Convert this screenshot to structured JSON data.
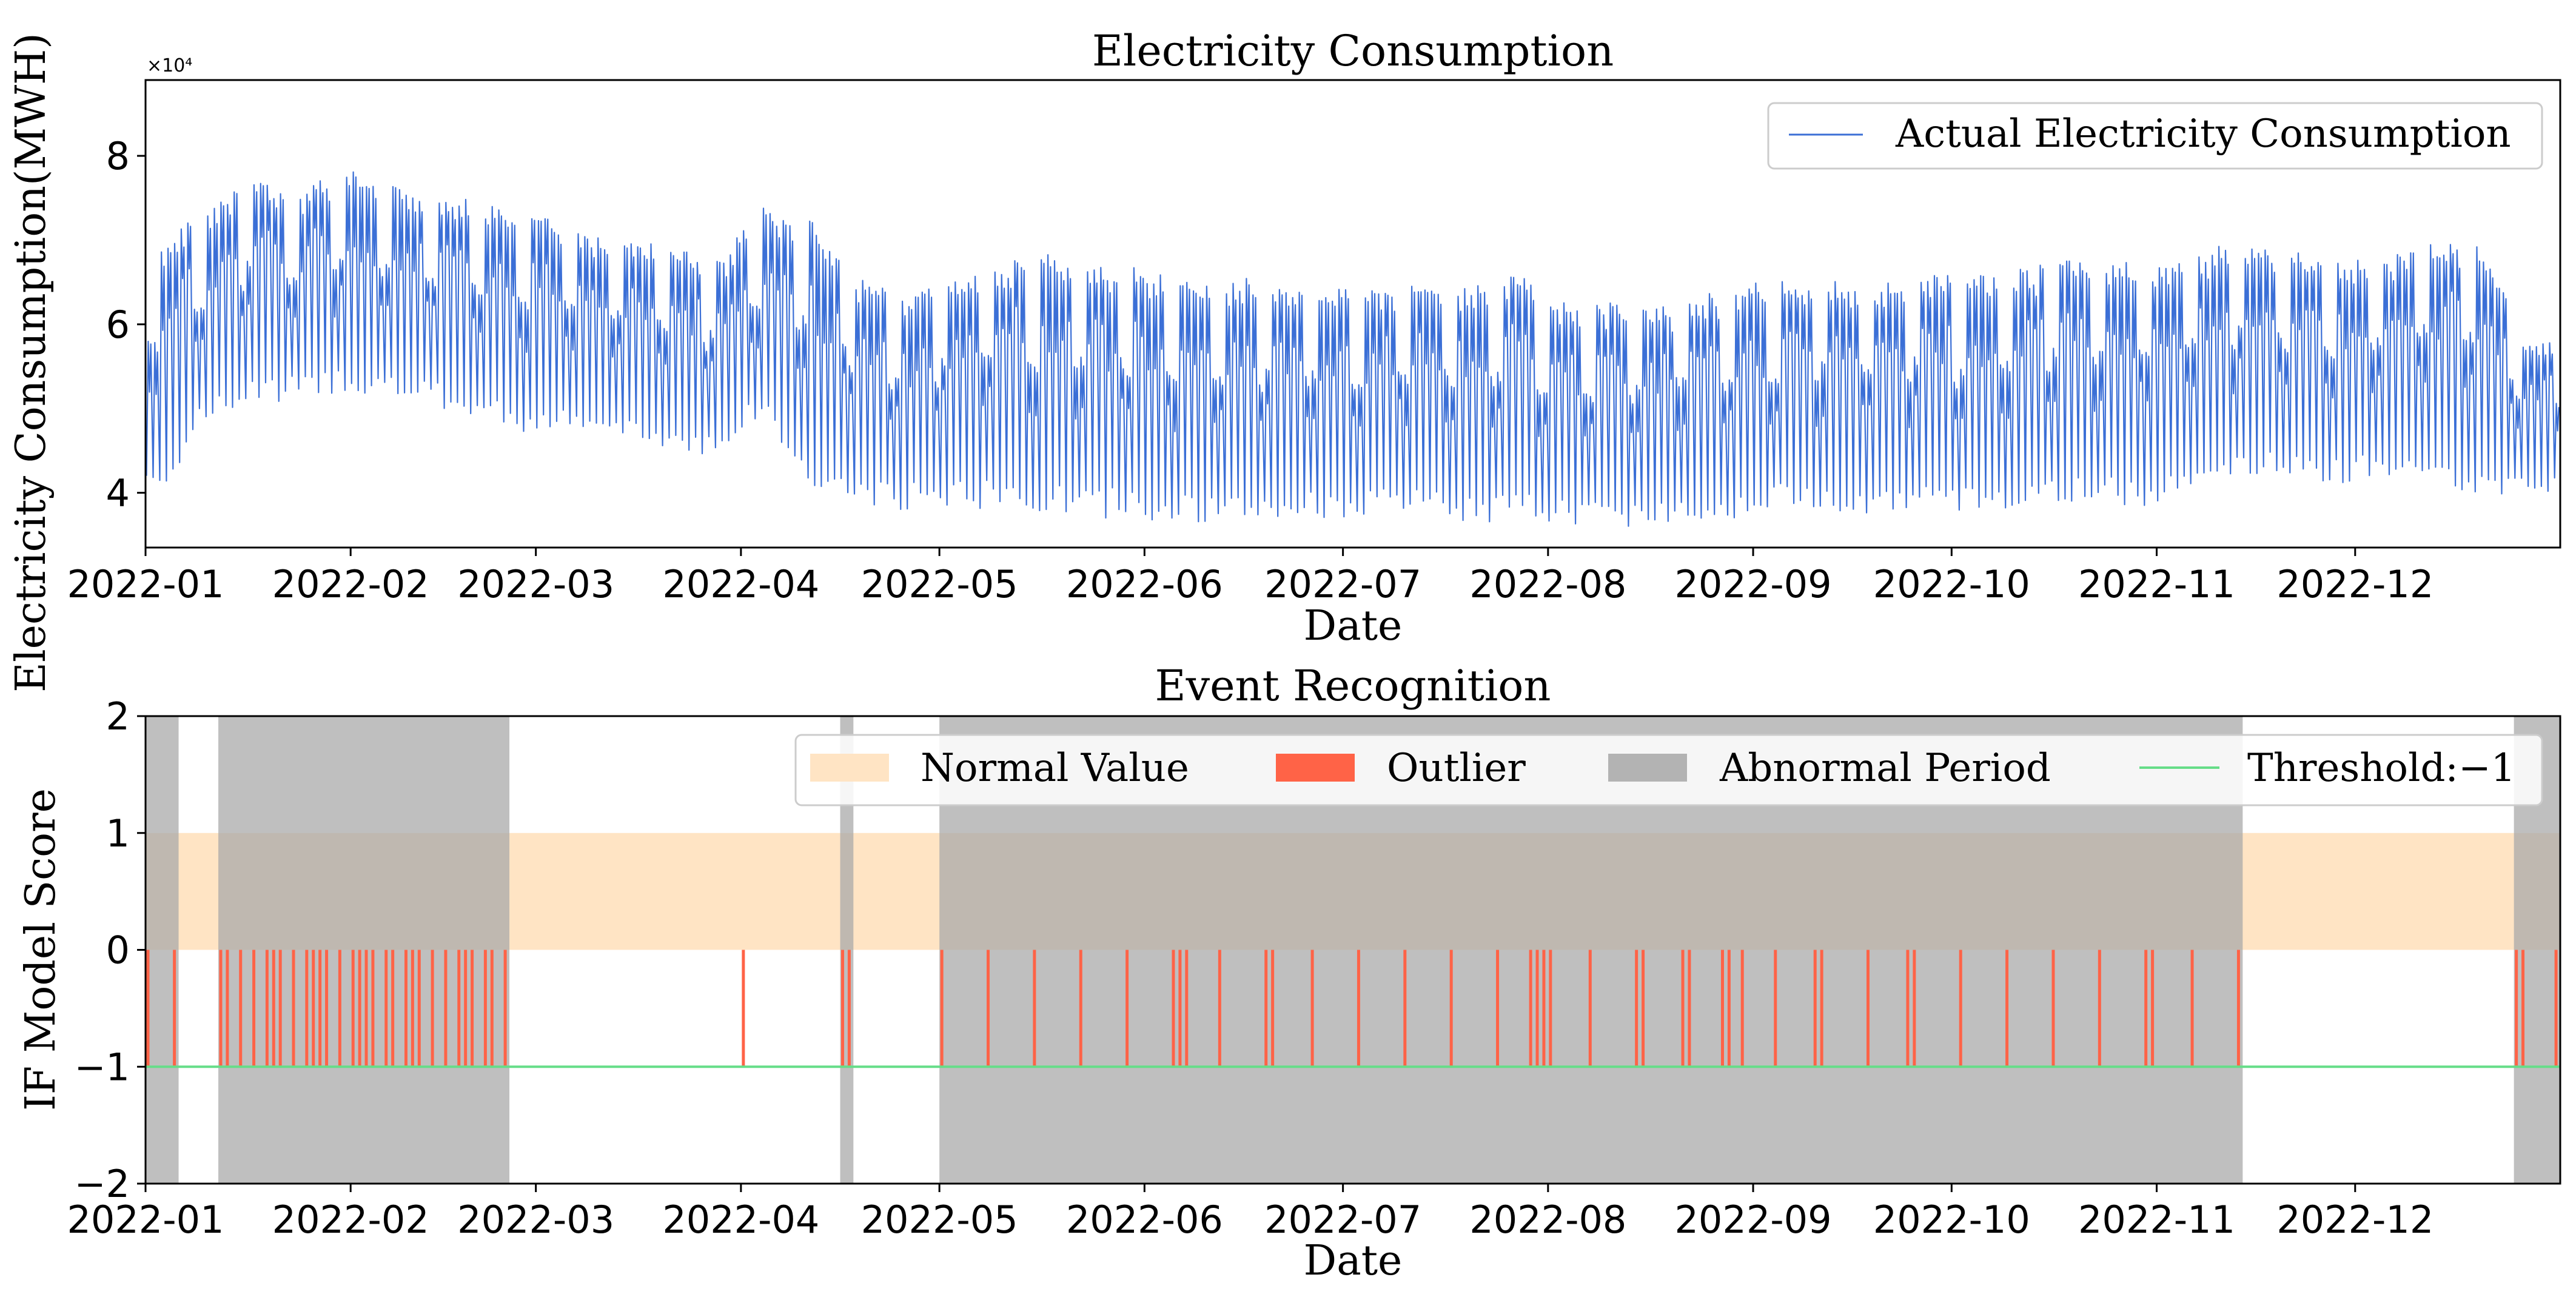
{
  "chart_data": [
    {
      "type": "line",
      "title": "Electricity Consumption",
      "xlabel": "Date",
      "ylabel": "Electricity Consumption(MWH)",
      "offset_text": "×10⁴",
      "x_range": [
        "2022-01-01",
        "2022-12-31"
      ],
      "ylim": [
        33500,
        89000
      ],
      "yticks": [
        40000,
        60000,
        80000
      ],
      "ytick_labels": [
        "4",
        "6",
        "8"
      ],
      "xtick_dates": [
        "2022-01-01",
        "2022-02-01",
        "2022-03-01",
        "2022-04-01",
        "2022-05-01",
        "2022-06-01",
        "2022-07-01",
        "2022-08-01",
        "2022-09-01",
        "2022-10-01",
        "2022-11-01",
        "2022-12-01"
      ],
      "xtick_labels": [
        "2022-01",
        "2022-02",
        "2022-03",
        "2022-04",
        "2022-05",
        "2022-06",
        "2022-07",
        "2022-08",
        "2022-09",
        "2022-10",
        "2022-11",
        "2022-12"
      ],
      "legend": {
        "location": "top-right",
        "entries": [
          {
            "label": "Actual Electricity Consumption",
            "color": "#3b6fd6"
          }
        ]
      },
      "series": [
        {
          "name": "Actual Electricity Consumption",
          "color": "#3b6fd6",
          "resolution": "hourly (weekly peaks listed)",
          "weekly_peak_dates": [
            "2022-01-03",
            "2022-01-10",
            "2022-01-17",
            "2022-01-24",
            "2022-01-31",
            "2022-02-07",
            "2022-02-14",
            "2022-02-21",
            "2022-02-28",
            "2022-03-07",
            "2022-03-14",
            "2022-03-21",
            "2022-03-28",
            "2022-04-04",
            "2022-04-11",
            "2022-04-18",
            "2022-04-25",
            "2022-05-02",
            "2022-05-09",
            "2022-05-16",
            "2022-05-23",
            "2022-05-30",
            "2022-06-06",
            "2022-06-13",
            "2022-06-20",
            "2022-06-27",
            "2022-07-04",
            "2022-07-11",
            "2022-07-18",
            "2022-07-25",
            "2022-08-01",
            "2022-08-08",
            "2022-08-15",
            "2022-08-22",
            "2022-08-29",
            "2022-09-05",
            "2022-09-12",
            "2022-09-19",
            "2022-09-26",
            "2022-10-03",
            "2022-10-10",
            "2022-10-17",
            "2022-10-24",
            "2022-10-31",
            "2022-11-07",
            "2022-11-14",
            "2022-11-21",
            "2022-11-28",
            "2022-12-05",
            "2022-12-12",
            "2022-12-19",
            "2022-12-26"
          ],
          "weekly_peak_values": [
            70000,
            74000,
            77500,
            76000,
            78500,
            76500,
            75500,
            74500,
            73500,
            71000,
            70500,
            69000,
            67500,
            74000,
            72500,
            66000,
            63000,
            66000,
            67000,
            68500,
            68000,
            67000,
            65500,
            65500,
            65500,
            65000,
            64500,
            65000,
            65000,
            66500,
            64000,
            63000,
            62000,
            63500,
            64500,
            65500,
            65500,
            64500,
            66500,
            65500,
            66500,
            67500,
            68000,
            66500,
            69000,
            70000,
            69000,
            67500,
            68000,
            70000,
            71500,
            58500
          ],
          "weekly_trough_values": [
            40000,
            48000,
            50500,
            51000,
            52000,
            51000,
            50000,
            48500,
            47000,
            47000,
            46000,
            45000,
            44500,
            49000,
            40000,
            38500,
            38000,
            38500,
            38000,
            37500,
            37000,
            37000,
            36500,
            36000,
            36500,
            37000,
            37000,
            37500,
            36500,
            36500,
            36500,
            36000,
            36000,
            36500,
            37000,
            38000,
            38000,
            37500,
            37500,
            37500,
            38000,
            38500,
            38500,
            38500,
            41000,
            42000,
            41500,
            41000,
            42000,
            42500,
            38500,
            40000
          ],
          "min_value": 35000,
          "max_value": 79000
        }
      ]
    },
    {
      "type": "bar",
      "title": "Event Recognition",
      "xlabel": "Date",
      "ylabel": "IF Model Score",
      "x_range": [
        "2022-01-01",
        "2022-12-31"
      ],
      "ylim": [
        -2,
        2
      ],
      "yticks": [
        -2,
        -1,
        0,
        1,
        2
      ],
      "ytick_labels": [
        "−2",
        "−1",
        "0",
        "1",
        "2"
      ],
      "xtick_dates": [
        "2022-01-01",
        "2022-02-01",
        "2022-03-01",
        "2022-04-01",
        "2022-05-01",
        "2022-06-01",
        "2022-07-01",
        "2022-08-01",
        "2022-09-01",
        "2022-10-01",
        "2022-11-01",
        "2022-12-01"
      ],
      "xtick_labels": [
        "2022-01",
        "2022-02",
        "2022-03",
        "2022-04",
        "2022-05",
        "2022-06",
        "2022-07",
        "2022-08",
        "2022-09",
        "2022-10",
        "2022-11",
        "2022-12"
      ],
      "legend": {
        "location": "top-right",
        "entries": [
          {
            "label": "Normal Value",
            "color": "#ffe4c4"
          },
          {
            "label": "Outlier",
            "color": "#ff6347"
          },
          {
            "label": "Abnormal Period",
            "color": "#b3b3b3"
          },
          {
            "label": "Threshold:−1",
            "color": "#66dd88"
          }
        ]
      },
      "normal_value_band": {
        "from": 0,
        "to": 1,
        "color": "#ffe4c4"
      },
      "threshold": {
        "value": -1,
        "color": "#66dd88"
      },
      "abnormal_periods": [
        {
          "start": "2022-01-01",
          "end": "2022-01-05"
        },
        {
          "start": "2022-01-12",
          "end": "2022-02-24"
        },
        {
          "start": "2022-04-16",
          "end": "2022-04-17"
        },
        {
          "start": "2022-05-01",
          "end": "2022-11-13"
        },
        {
          "start": "2022-12-25",
          "end": "2022-12-31"
        }
      ],
      "outliers": {
        "color": "#ff6347",
        "score": -1,
        "dates": [
          "2022-01-01",
          "2022-01-05",
          "2022-01-12",
          "2022-01-13",
          "2022-01-15",
          "2022-01-17",
          "2022-01-19",
          "2022-01-20",
          "2022-01-21",
          "2022-01-23",
          "2022-01-25",
          "2022-01-26",
          "2022-01-27",
          "2022-01-28",
          "2022-01-30",
          "2022-02-01",
          "2022-02-02",
          "2022-02-03",
          "2022-02-04",
          "2022-02-06",
          "2022-02-07",
          "2022-02-09",
          "2022-02-10",
          "2022-02-11",
          "2022-02-13",
          "2022-02-15",
          "2022-02-17",
          "2022-02-18",
          "2022-02-19",
          "2022-02-21",
          "2022-02-22",
          "2022-02-24",
          "2022-04-01",
          "2022-04-16",
          "2022-04-17",
          "2022-05-01",
          "2022-05-08",
          "2022-05-15",
          "2022-05-22",
          "2022-05-29",
          "2022-06-05",
          "2022-06-06",
          "2022-06-07",
          "2022-06-12",
          "2022-06-19",
          "2022-06-20",
          "2022-06-26",
          "2022-07-03",
          "2022-07-10",
          "2022-07-17",
          "2022-07-24",
          "2022-07-29",
          "2022-07-30",
          "2022-07-31",
          "2022-08-01",
          "2022-08-07",
          "2022-08-14",
          "2022-08-15",
          "2022-08-21",
          "2022-08-22",
          "2022-08-27",
          "2022-08-28",
          "2022-08-30",
          "2022-09-04",
          "2022-09-10",
          "2022-09-11",
          "2022-09-18",
          "2022-09-24",
          "2022-09-25",
          "2022-10-02",
          "2022-10-09",
          "2022-10-16",
          "2022-10-23",
          "2022-10-30",
          "2022-10-31",
          "2022-11-06",
          "2022-11-13",
          "2022-12-25",
          "2022-12-26",
          "2022-12-31"
        ]
      }
    }
  ]
}
